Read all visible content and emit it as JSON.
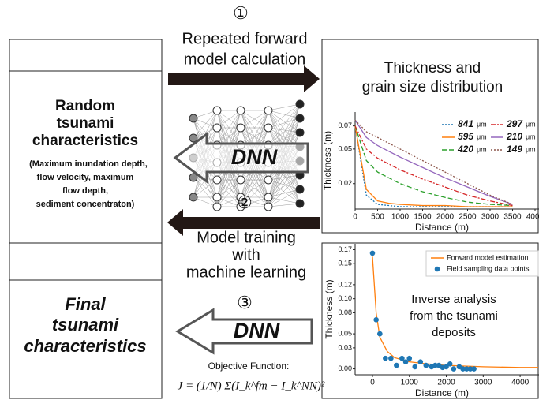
{
  "steps": [
    {
      "number": "①",
      "lines": [
        "Repeated forward",
        "model calculation"
      ]
    },
    {
      "number": "②",
      "lines": [
        "Model training",
        "with",
        "machine learning"
      ]
    },
    {
      "number": "③"
    }
  ],
  "dnn_labels": [
    "DNN",
    "DNN"
  ],
  "random_box": {
    "title_lines": [
      "Random",
      "tsunami",
      "characteristics"
    ],
    "detail_lines": [
      "(Maximum inundation depth,",
      "flow velocity, maximum",
      "flow depth,",
      "sediment concentraton)"
    ]
  },
  "final_box": {
    "title_lines": [
      "Final",
      "tsunami",
      "characteristics"
    ]
  },
  "objective": {
    "title": "Objective Function:",
    "formula": "J = (1/N) Σ(I_k^fm − I_k^NN)²"
  },
  "chart_data": [
    {
      "type": "line",
      "title": [
        "Thickness and",
        "grain size distribution"
      ],
      "x_label": "Distance (m)",
      "y_label": "Thickness (m)",
      "unit": "μm",
      "x": [
        0,
        250,
        500,
        750,
        1000,
        1500,
        2000,
        2500,
        3000,
        3500
      ],
      "xlim": [
        0,
        4000
      ],
      "xticks": [
        0,
        500,
        1000,
        1500,
        2000,
        2500,
        3000,
        3500,
        4000
      ],
      "ylim": [
        0,
        0.08
      ],
      "yticks": [
        0.02,
        0.05,
        0.07
      ],
      "series": [
        {
          "name": "841",
          "color": "#1f77b4",
          "style": "dotted",
          "values": [
            0.07,
            0.01,
            0.002,
            0.001,
            0,
            0,
            0,
            0,
            0,
            0
          ]
        },
        {
          "name": "595",
          "color": "#ff7f0e",
          "style": "solid",
          "values": [
            0.07,
            0.015,
            0.005,
            0.003,
            0.002,
            0.001,
            0.001,
            0,
            0,
            0
          ]
        },
        {
          "name": "420",
          "color": "#2ca02c",
          "style": "dashed",
          "values": [
            0.07,
            0.04,
            0.03,
            0.025,
            0.02,
            0.013,
            0.008,
            0.004,
            0.002,
            0.001
          ]
        },
        {
          "name": "297",
          "color": "#d62728",
          "style": "dashdot",
          "values": [
            0.07,
            0.05,
            0.042,
            0.037,
            0.032,
            0.024,
            0.017,
            0.01,
            0.005,
            0.001
          ]
        },
        {
          "name": "210",
          "color": "#9467bd",
          "style": "solid",
          "values": [
            0.075,
            0.06,
            0.053,
            0.048,
            0.043,
            0.034,
            0.025,
            0.017,
            0.009,
            0.002
          ]
        },
        {
          "name": "149",
          "color": "#8c564b",
          "style": "dotted",
          "values": [
            0.075,
            0.065,
            0.06,
            0.055,
            0.05,
            0.04,
            0.03,
            0.02,
            0.01,
            0.002
          ]
        }
      ]
    },
    {
      "type": "scatter",
      "annotation": [
        "Inverse analysis",
        "from the tsunami",
        "deposits"
      ],
      "x_label": "Distance (m)",
      "y_label": "Thickness (m)",
      "xlim": [
        -470,
        4490
      ],
      "xticks": [
        0,
        1000,
        2000,
        3000,
        4000
      ],
      "ylim": [
        -0.005,
        0.175
      ],
      "yticks": [
        {
          "value": 0,
          "label": "0.00"
        },
        0.03,
        0.05,
        0.08,
        {
          "value": 0.1,
          "label": "0.10"
        },
        0.12,
        0.15,
        0.17
      ],
      "series": [
        {
          "name": "Forward model estimation",
          "color": "#ff7f0e",
          "style": "line",
          "x": [
            0,
            100,
            200,
            400,
            600,
            1000,
            1500,
            2000,
            3000,
            4000,
            4490
          ],
          "values": [
            0.16,
            0.08,
            0.045,
            0.025,
            0.016,
            0.01,
            0.007,
            0.005,
            0.003,
            0.002,
            0.002
          ]
        },
        {
          "name": "Field sampling data points",
          "color": "#1f77b4",
          "style": "points",
          "x": [
            0,
            100,
            200,
            350,
            500,
            650,
            800,
            900,
            1000,
            1150,
            1300,
            1450,
            1600,
            1700,
            1800,
            1900,
            2000,
            2100,
            2200,
            2350,
            2450,
            2550,
            2650,
            2750
          ],
          "values": [
            0.165,
            0.07,
            0.05,
            0.015,
            0.015,
            0.005,
            0.015,
            0.01,
            0.015,
            0.003,
            0.01,
            0.005,
            0.003,
            0.005,
            0.005,
            0.002,
            0.003,
            0.007,
            0,
            0.003,
            0,
            0,
            0,
            0
          ]
        }
      ]
    }
  ]
}
